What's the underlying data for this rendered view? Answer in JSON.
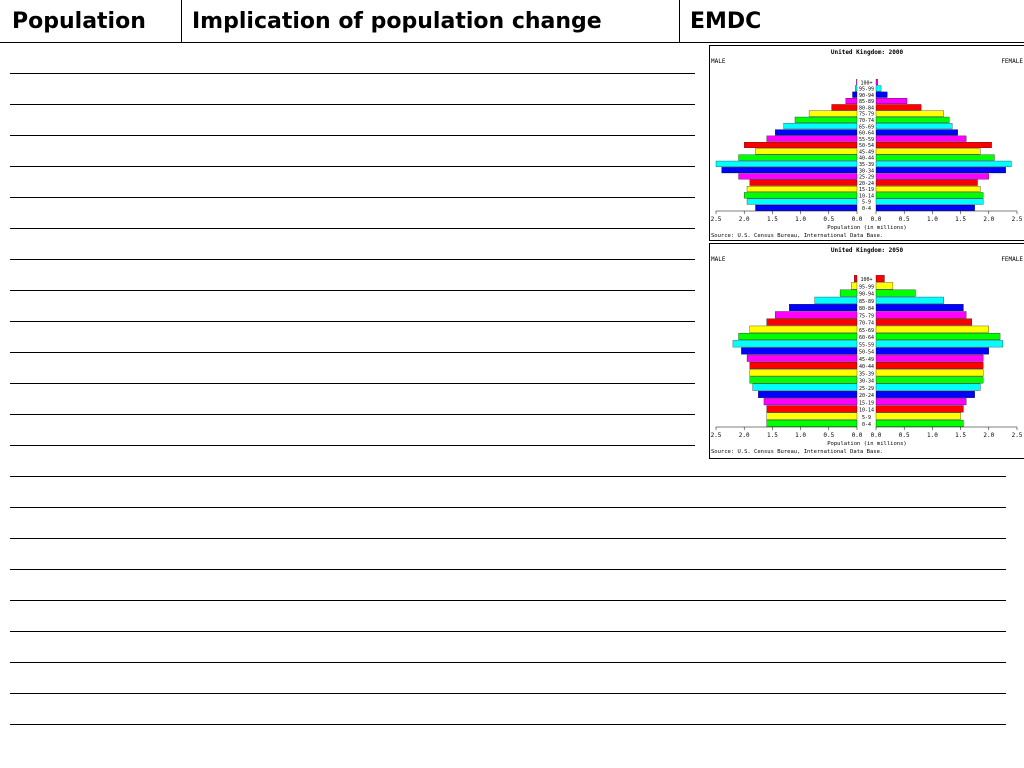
{
  "header": {
    "col1": "Population",
    "col2": "Implication of population change",
    "col3": "EMDC"
  },
  "chart_data": [
    {
      "type": "bar",
      "title": "United Kingdom: 2000",
      "left_label": "MALE",
      "right_label": "FEMALE",
      "xlabel": "Population (in millions)",
      "source": "Source: U.S. Census Bureau, International Data Base.",
      "xlim": [
        0,
        2.5
      ],
      "x_ticks_left": [
        "2.5",
        "2.0",
        "1.5",
        "1.0",
        "0.5",
        "0.0"
      ],
      "x_ticks_right": [
        "0.0",
        "0.5",
        "1.0",
        "1.5",
        "2.0",
        "2.5"
      ],
      "categories": [
        "100+",
        "95-99",
        "90-94",
        "85-89",
        "80-84",
        "75-79",
        "70-74",
        "65-69",
        "60-64",
        "55-59",
        "50-54",
        "45-49",
        "40-44",
        "35-39",
        "30-34",
        "25-29",
        "20-24",
        "15-19",
        "10-14",
        "5-9",
        "0-4"
      ],
      "colors": [
        "#ff00ff",
        "#00ffff",
        "#0000ff",
        "#ff00ff",
        "#ff0000",
        "#ffff00",
        "#00ff00",
        "#00ffff",
        "#0000ff",
        "#ff00ff",
        "#ff0000",
        "#ffff00",
        "#00ff00",
        "#00ffff",
        "#0000ff",
        "#ff00ff",
        "#ff0000",
        "#ffff00",
        "#00ff00",
        "#00ffff",
        "#0000ff"
      ],
      "series": [
        {
          "name": "MALE",
          "values": [
            0.01,
            0.03,
            0.08,
            0.2,
            0.45,
            0.85,
            1.1,
            1.3,
            1.45,
            1.6,
            2.0,
            1.8,
            2.1,
            2.5,
            2.4,
            2.1,
            1.9,
            1.95,
            2.0,
            1.95,
            1.8
          ]
        },
        {
          "name": "FEMALE",
          "values": [
            0.03,
            0.09,
            0.2,
            0.55,
            0.8,
            1.2,
            1.3,
            1.35,
            1.45,
            1.6,
            2.05,
            1.85,
            2.1,
            2.4,
            2.3,
            2.0,
            1.8,
            1.85,
            1.9,
            1.9,
            1.75
          ]
        }
      ]
    },
    {
      "type": "bar",
      "title": "United Kingdom: 2050",
      "left_label": "MALE",
      "right_label": "FEMALE",
      "xlabel": "Population (in millions)",
      "source": "Source: U.S. Census Bureau, International Data Base.",
      "xlim": [
        0,
        2.5
      ],
      "x_ticks_left": [
        "2.5",
        "2.0",
        "1.5",
        "1.0",
        "0.5",
        "0.0"
      ],
      "x_ticks_right": [
        "0.0",
        "0.5",
        "1.0",
        "1.5",
        "2.0",
        "2.5"
      ],
      "categories": [
        "100+",
        "95-99",
        "90-94",
        "85-89",
        "80-84",
        "75-79",
        "70-74",
        "65-69",
        "60-64",
        "55-59",
        "50-54",
        "45-49",
        "40-44",
        "35-39",
        "30-34",
        "25-29",
        "20-24",
        "15-19",
        "10-14",
        "5-9",
        "0-4"
      ],
      "colors": [
        "#ff0000",
        "#ffff00",
        "#00ff00",
        "#00ffff",
        "#0000ff",
        "#ff00ff",
        "#ff0000",
        "#ffff00",
        "#00ff00",
        "#00ffff",
        "#0000ff",
        "#ff00ff",
        "#ff0000",
        "#ffff00",
        "#00ff00",
        "#00ffff",
        "#0000ff",
        "#ff00ff",
        "#ff0000",
        "#ffff00",
        "#00ff00"
      ],
      "series": [
        {
          "name": "MALE",
          "values": [
            0.05,
            0.1,
            0.3,
            0.75,
            1.2,
            1.45,
            1.6,
            1.9,
            2.1,
            2.2,
            2.05,
            1.95,
            1.9,
            1.9,
            1.9,
            1.85,
            1.75,
            1.65,
            1.6,
            1.6,
            1.6
          ]
        },
        {
          "name": "FEMALE",
          "values": [
            0.15,
            0.3,
            0.7,
            1.2,
            1.55,
            1.6,
            1.7,
            2.0,
            2.2,
            2.25,
            2.0,
            1.9,
            1.9,
            1.9,
            1.9,
            1.85,
            1.75,
            1.6,
            1.55,
            1.5,
            1.55
          ]
        }
      ]
    }
  ]
}
